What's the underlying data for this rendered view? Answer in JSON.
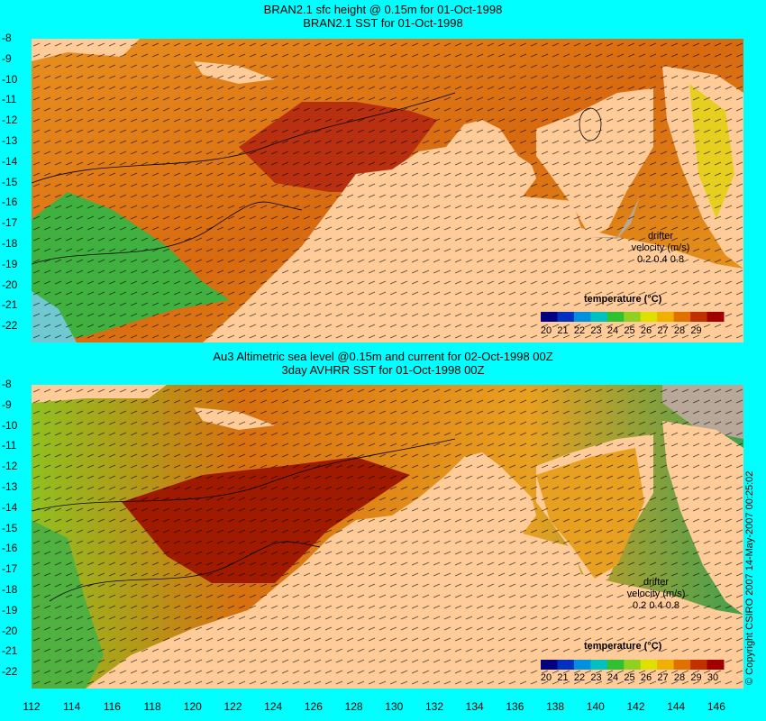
{
  "panels": [
    {
      "title1": "BRAN2.1 sfc height @ 0.15m for 01-Oct-1998",
      "title2": "BRAN2.1 SST for 01-Oct-1998",
      "legend_title": "temperature (°C)",
      "legend_labels": [
        "20",
        "21",
        "22",
        "23",
        "24",
        "25",
        "26",
        "27",
        "28",
        "29"
      ],
      "drifter_title": "drifter",
      "drifter_sub": "velocity (m/s)",
      "drifter_scale": "0.2 0.4 0.8"
    },
    {
      "title1": "Au3 Altimetric sea level  @0.15m and current for 02-Oct-1998 00Z",
      "title2": "3day AVHRR SST for 01-Oct-1998 00Z",
      "legend_title": "temperature (°C)",
      "legend_labels": [
        "20",
        "21",
        "22",
        "23",
        "24",
        "25",
        "26",
        "27",
        "28",
        "29",
        "30"
      ],
      "drifter_title": "drifter",
      "drifter_sub": "velocity (m/s)",
      "drifter_scale": "0.2 0.4 0.8"
    }
  ],
  "y_ticks": [
    "-8",
    "-9",
    "-10",
    "-11",
    "-12",
    "-13",
    "-14",
    "-15",
    "-16",
    "-17",
    "-18",
    "-19",
    "-20",
    "-21",
    "-22"
  ],
  "x_ticks": [
    "112",
    "114",
    "116",
    "118",
    "120",
    "122",
    "124",
    "126",
    "128",
    "130",
    "132",
    "134",
    "136",
    "138",
    "140",
    "142",
    "144",
    "146"
  ],
  "copyright": "© Copyright CSIRO 2007  14-May-2007 00:25:02",
  "colors": {
    "background": "#00ffff",
    "land": "#ffcc99",
    "no_data_land": "#b8a898",
    "colorbar": [
      "#000080",
      "#0030c0",
      "#0090e0",
      "#00c0c0",
      "#30c030",
      "#90d020",
      "#e0e000",
      "#f0b000",
      "#e07000",
      "#c03000",
      "#a00000"
    ]
  }
}
